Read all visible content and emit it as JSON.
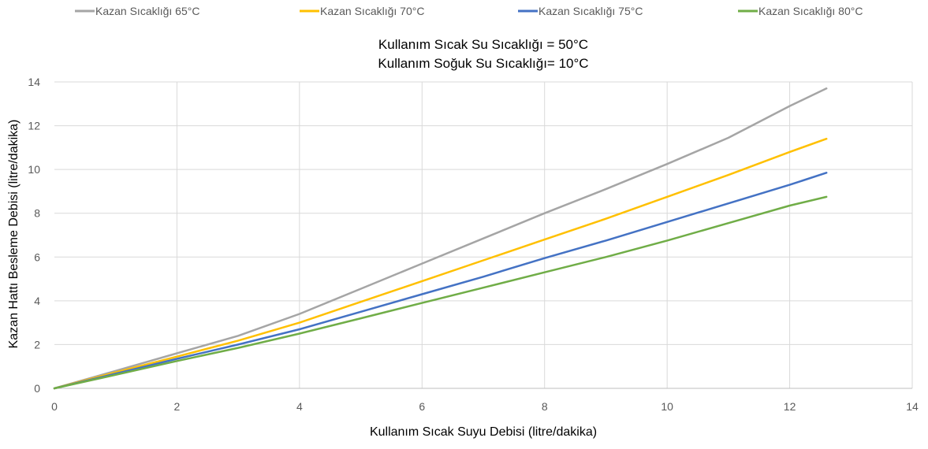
{
  "chart_data": {
    "type": "line",
    "title": [
      "Kullanım Sıcak Su Sıcaklığı = 50°C",
      "Kullanım Soğuk Su Sıcaklığı= 10°C"
    ],
    "xlabel": "Kullanım Sıcak Suyu Debisi (litre/dakika)",
    "ylabel": "Kazan Hattı Besleme Debisi (litre/dakika)",
    "xlim": [
      0,
      14
    ],
    "ylim": [
      0,
      14
    ],
    "xticks": [
      "0",
      "2",
      "4",
      "6",
      "8",
      "10",
      "12",
      "14"
    ],
    "yticks": [
      "0",
      "2",
      "4",
      "6",
      "8",
      "10",
      "12",
      "14"
    ],
    "grid": true,
    "legend_position": "top",
    "series": [
      {
        "name": "Kazan Sıcaklığı 65°C",
        "color": "#a5a5a5",
        "x": [
          0,
          1,
          2,
          3,
          4,
          5,
          6,
          7,
          8,
          9,
          10,
          11,
          12,
          12.6
        ],
        "y": [
          0,
          0.8,
          1.6,
          2.4,
          3.4,
          4.55,
          5.7,
          6.85,
          8.0,
          9.1,
          10.25,
          11.45,
          12.9,
          13.7
        ]
      },
      {
        "name": "Kazan Sıcaklığı 70°C",
        "color": "#ffc000",
        "x": [
          0,
          1,
          2,
          3,
          4,
          5,
          6,
          7,
          8,
          9,
          10,
          11,
          12,
          12.6
        ],
        "y": [
          0,
          0.73,
          1.45,
          2.18,
          3.0,
          3.95,
          4.9,
          5.85,
          6.8,
          7.75,
          8.75,
          9.75,
          10.8,
          11.4
        ]
      },
      {
        "name": "Kazan Sıcaklığı 75°C",
        "color": "#4472c4",
        "x": [
          0,
          1,
          2,
          3,
          4,
          5,
          6,
          7,
          8,
          9,
          10,
          11,
          12,
          12.6
        ],
        "y": [
          0,
          0.67,
          1.35,
          2.0,
          2.7,
          3.5,
          4.3,
          5.1,
          5.95,
          6.75,
          7.6,
          8.45,
          9.3,
          9.85
        ]
      },
      {
        "name": "Kazan Sıcaklığı 80°C",
        "color": "#70ad47",
        "x": [
          0,
          1,
          2,
          3,
          4,
          5,
          6,
          7,
          8,
          9,
          10,
          11,
          12,
          12.6
        ],
        "y": [
          0,
          0.62,
          1.25,
          1.85,
          2.5,
          3.2,
          3.9,
          4.6,
          5.3,
          6.0,
          6.75,
          7.55,
          8.35,
          8.75
        ]
      }
    ]
  }
}
